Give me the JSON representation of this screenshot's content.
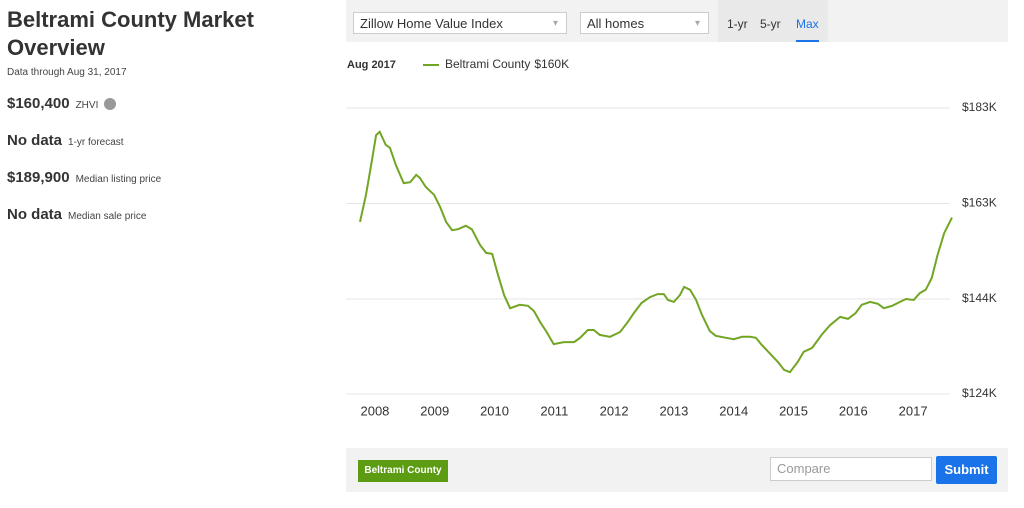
{
  "sidebar": {
    "title": "Beltrami County Market Overview",
    "data_through": "Data through Aug 31, 2017",
    "metrics": [
      {
        "value": "$160,400",
        "label": "ZHVI"
      },
      {
        "value": "No data",
        "label": "1-yr forecast"
      },
      {
        "value": "$189,900",
        "label": "Median listing price"
      },
      {
        "value": "No data",
        "label": "Median sale price"
      }
    ]
  },
  "controls": {
    "index": "Zillow Home Value Index",
    "home_type": "All homes",
    "ranges": [
      "1-yr",
      "5-yr",
      "Max"
    ],
    "active_range": 2
  },
  "footer": {
    "compare_placeholder": "Compare",
    "submit": "Submit"
  },
  "chart_data": {
    "type": "line",
    "legend_date": "Aug 2017",
    "x": [
      2007.75,
      2007.85,
      2007.95,
      2008.02,
      2008.08,
      2008.18,
      2008.25,
      2008.35,
      2008.48,
      2008.59,
      2008.69,
      2008.75,
      2008.85,
      2008.99,
      2009.09,
      2009.19,
      2009.29,
      2009.39,
      2009.52,
      2009.62,
      2009.76,
      2009.86,
      2009.96,
      2010.06,
      2010.16,
      2010.26,
      2010.42,
      2010.56,
      2010.66,
      2010.76,
      2010.86,
      2010.99,
      2011.16,
      2011.33,
      2011.43,
      2011.56,
      2011.66,
      2011.76,
      2011.93,
      2012.1,
      2012.23,
      2012.33,
      2012.46,
      2012.6,
      2012.73,
      2012.83,
      2012.9,
      2013.0,
      2013.1,
      2013.17,
      2013.27,
      2013.37,
      2013.47,
      2013.6,
      2013.7,
      2013.87,
      2014.0,
      2014.14,
      2014.27,
      2014.37,
      2014.47,
      2014.61,
      2014.74,
      2014.84,
      2014.94,
      2015.07,
      2015.17,
      2015.31,
      2015.47,
      2015.61,
      2015.78,
      2015.91,
      2016.04,
      2016.14,
      2016.28,
      2016.41,
      2016.51,
      2016.65,
      2016.78,
      2016.88,
      2017.01,
      2017.11,
      2017.21,
      2017.31,
      2017.41,
      2017.52,
      2017.65
    ],
    "series": [
      {
        "name": "Beltrami County",
        "color": "#72a524",
        "current_label": "$160K",
        "values": [
          159500,
          165100,
          172300,
          177400,
          178100,
          175400,
          174800,
          171200,
          167500,
          167700,
          169200,
          168600,
          166700,
          165100,
          162600,
          159500,
          157800,
          158000,
          158700,
          158000,
          154700,
          153100,
          152900,
          148500,
          144400,
          141700,
          142400,
          142200,
          141100,
          138900,
          137000,
          134300,
          134700,
          134700,
          135600,
          137200,
          137200,
          136200,
          135800,
          136800,
          138900,
          140700,
          142800,
          144000,
          144600,
          144600,
          143400,
          143000,
          144400,
          146100,
          145500,
          143400,
          140300,
          137000,
          136000,
          135600,
          135300,
          135800,
          135800,
          135600,
          134100,
          132300,
          130600,
          129000,
          128500,
          130600,
          132700,
          133500,
          136200,
          138200,
          139900,
          139500,
          140700,
          142400,
          143000,
          142600,
          141700,
          142200,
          143000,
          143600,
          143400,
          144800,
          145500,
          147900,
          152700,
          157200,
          160400
        ]
      }
    ],
    "xlim": [
      2007.75,
      2017.65
    ],
    "xticks": [
      2008,
      2009,
      2010,
      2011,
      2012,
      2013,
      2014,
      2015,
      2016,
      2017
    ],
    "ylim": [
      124000,
      183000
    ],
    "yticks": [
      {
        "value": 124000,
        "label": "$124K"
      },
      {
        "value": 143600,
        "label": "$144K"
      },
      {
        "value": 163300,
        "label": "$163K"
      },
      {
        "value": 183000,
        "label": "$183K"
      }
    ],
    "grid": true
  }
}
